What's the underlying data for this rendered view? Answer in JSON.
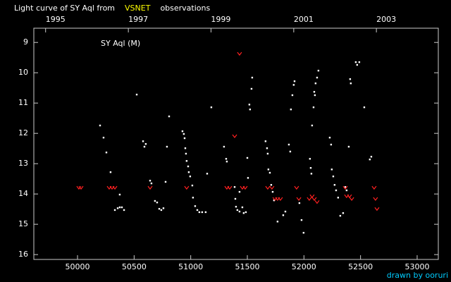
{
  "chart_data": {
    "type": "scatter",
    "title_parts": [
      {
        "text": "Light curve of SY Aql from",
        "color": "#ffffff"
      },
      {
        "text": "VSNET",
        "color": "#ffff00"
      },
      {
        "text": "observations",
        "color": "#ffffff"
      }
    ],
    "annotation": "SY Aql (M)",
    "credit": "drawn by ooruri",
    "xlim": [
      49614,
      53187
    ],
    "ylim": [
      16.16,
      8.53
    ],
    "xticks": [
      50000,
      50500,
      51000,
      51500,
      52000,
      52500,
      53000
    ],
    "yticks": [
      9,
      10,
      11,
      12,
      13,
      14,
      15,
      16
    ],
    "x2ticks": [
      {
        "value": 49718,
        "label": "1995"
      },
      {
        "value": 50449,
        "label": "1997"
      },
      {
        "value": 51179,
        "label": "1999"
      },
      {
        "value": 51910,
        "label": "2001"
      },
      {
        "value": 52640,
        "label": "2003"
      }
    ],
    "series": [
      {
        "color": "#ffffff",
        "marker": "dot",
        "x": [
          50199,
          50230,
          50255,
          50292,
          50330,
          50355,
          50373,
          50392,
          50411,
          50373,
          50523,
          50579,
          50591,
          50603,
          50641,
          50653,
          50684,
          50703,
          50722,
          50740,
          50759,
          50778,
          50790,
          50809,
          50927,
          50939,
          50946,
          50952,
          50958,
          50964,
          50977,
          50983,
          50995,
          51014,
          51020,
          51039,
          51058,
          51076,
          51101,
          51132,
          51145,
          51182,
          51294,
          51313,
          51319,
          51388,
          51394,
          51400,
          51412,
          51431,
          51431,
          51456,
          51468,
          51487,
          51500,
          51506,
          51518,
          51524,
          51537,
          51543,
          51661,
          51674,
          51680,
          51686,
          51699,
          51711,
          51724,
          51736,
          51767,
          51817,
          51836,
          51867,
          51879,
          51885,
          51898,
          51910,
          51917,
          51960,
          51979,
          51997,
          52053,
          52060,
          52066,
          52072,
          52085,
          52091,
          52097,
          52103,
          52116,
          52128,
          52228,
          52240,
          52246,
          52259,
          52271,
          52284,
          52302,
          52321,
          52346,
          52365,
          52377,
          52396,
          52408,
          52414,
          52458,
          52470,
          52489,
          52533,
          52582,
          52595
        ],
        "values": [
          11.74,
          12.14,
          12.63,
          13.28,
          14.53,
          14.47,
          14.44,
          14.44,
          14.53,
          14.02,
          10.72,
          12.26,
          12.44,
          12.35,
          13.56,
          13.65,
          14.23,
          14.28,
          14.49,
          14.53,
          14.47,
          13.6,
          12.44,
          11.44,
          11.93,
          12.02,
          12.16,
          12.49,
          12.67,
          12.91,
          13.09,
          13.28,
          13.42,
          13.72,
          14.12,
          14.4,
          14.53,
          14.6,
          14.6,
          14.6,
          13.33,
          11.14,
          12.44,
          12.84,
          12.93,
          13.77,
          14.16,
          14.42,
          14.53,
          14.58,
          13.93,
          14.44,
          14.63,
          14.6,
          12.81,
          13.47,
          11.05,
          11.21,
          10.53,
          10.16,
          12.26,
          12.49,
          12.67,
          13.19,
          13.3,
          13.7,
          13.93,
          14.21,
          14.91,
          14.7,
          14.58,
          12.37,
          12.6,
          11.21,
          10.74,
          10.4,
          10.28,
          14.3,
          14.86,
          15.28,
          12.84,
          13.14,
          13.33,
          11.74,
          11.14,
          10.63,
          10.74,
          10.35,
          10.16,
          9.93,
          12.14,
          12.37,
          13.19,
          13.42,
          13.7,
          13.88,
          14.12,
          14.72,
          14.63,
          13.77,
          13.88,
          12.44,
          10.21,
          10.35,
          9.65,
          9.74,
          9.65,
          11.14,
          12.86,
          12.77
        ]
      },
      {
        "color": "#ff2020",
        "marker": "v",
        "x": [
          50012,
          50031,
          50280,
          50305,
          50330,
          50641,
          50964,
          51319,
          51344,
          51388,
          51431,
          51456,
          51481,
          51680,
          51717,
          51744,
          51767,
          51792,
          51935,
          51955,
          52047,
          52072,
          52091,
          52116,
          52365,
          52377,
          52402,
          52422,
          52620,
          52632,
          52645
        ],
        "values": [
          13.79,
          13.79,
          13.79,
          13.79,
          13.79,
          13.79,
          13.79,
          13.79,
          13.79,
          12.09,
          9.37,
          13.79,
          13.79,
          13.79,
          13.79,
          14.16,
          14.16,
          14.16,
          13.79,
          14.16,
          14.16,
          14.07,
          14.16,
          14.26,
          13.79,
          14.07,
          14.07,
          14.16,
          13.79,
          14.16,
          14.49
        ]
      }
    ]
  }
}
